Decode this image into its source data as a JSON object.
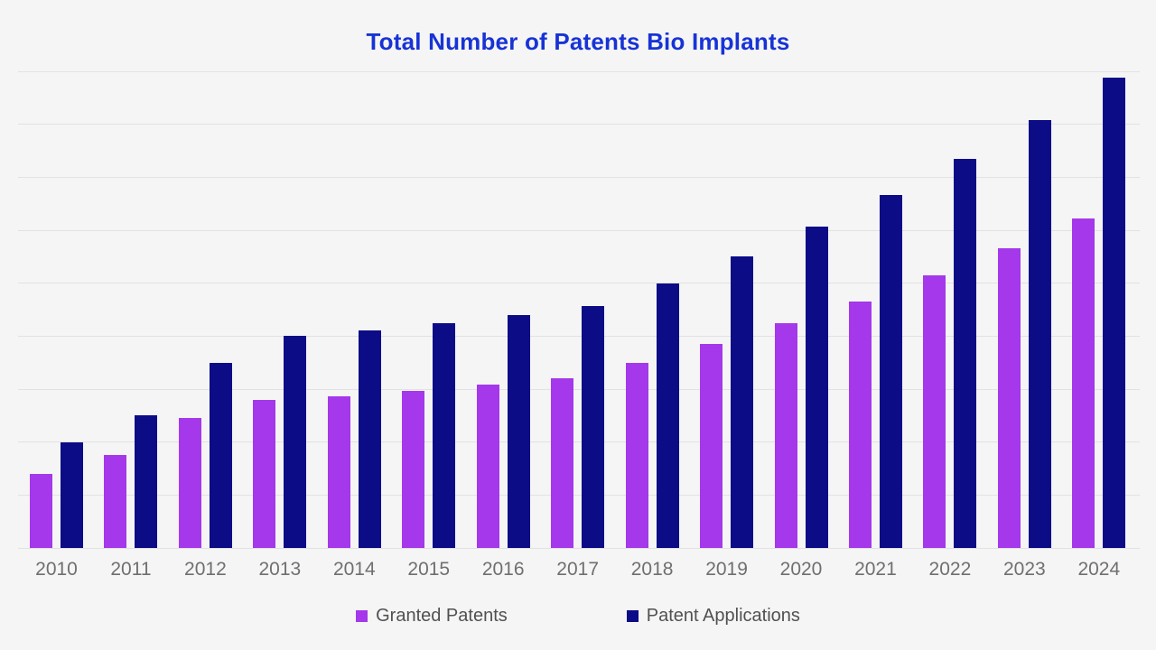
{
  "title": {
    "text": "Total Number of Patents Bio Implants",
    "color": "#1733d6"
  },
  "legend": [
    {
      "label": "Granted Patents",
      "color": "#a438ea"
    },
    {
      "label": "Patent Applications",
      "color": "#0c0c87"
    }
  ],
  "chart_data": {
    "type": "bar",
    "title": "Total Number of Patents Bio Implants",
    "xlabel": "",
    "ylabel": "",
    "categories": [
      "2010",
      "2011",
      "2012",
      "2013",
      "2014",
      "2015",
      "2016",
      "2017",
      "2018",
      "2019",
      "2020",
      "2021",
      "2022",
      "2023",
      "2024"
    ],
    "series": [
      {
        "name": "Granted Patents",
        "color": "#a438ea",
        "values": [
          140,
          175,
          245,
          280,
          287,
          297,
          308,
          320,
          350,
          385,
          424,
          466,
          514,
          566,
          622
        ]
      },
      {
        "name": "Patent Applications",
        "color": "#0c0c87",
        "values": [
          200,
          250,
          350,
          400,
          410,
          424,
          440,
          457,
          500,
          550,
          606,
          666,
          734,
          808,
          888
        ]
      }
    ],
    "ylim": [
      0,
      900
    ],
    "grid_interval": 100,
    "grid": true,
    "y_axis_labels_visible": false,
    "legend_position": "bottom"
  },
  "colors": {
    "background": "#f5f5f5",
    "gridline": "#e2e2e2",
    "axis_label": "#6f6f6f",
    "legend_label": "#515155"
  }
}
